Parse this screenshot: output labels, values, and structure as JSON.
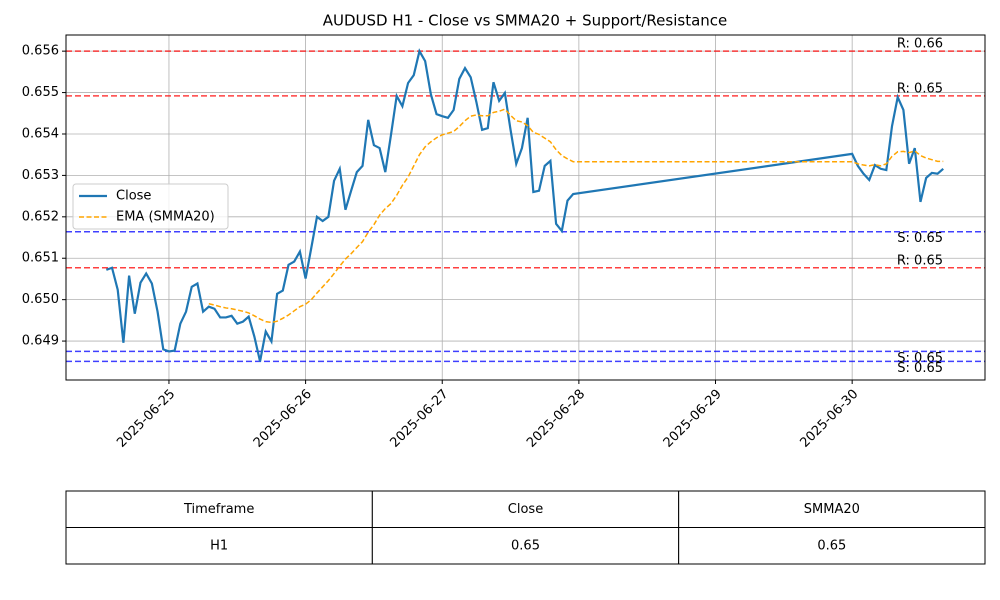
{
  "chart_data": {
    "type": "line",
    "title": "AUDUSD H1 - Close vs SMMA20 + Support/Resistance",
    "x": [
      "2025-06-24T13:00",
      "2025-06-24T14:00",
      "2025-06-24T15:00",
      "2025-06-24T16:00",
      "2025-06-24T17:00",
      "2025-06-24T18:00",
      "2025-06-24T19:00",
      "2025-06-24T20:00",
      "2025-06-24T21:00",
      "2025-06-24T22:00",
      "2025-06-24T23:00",
      "2025-06-25T00:00",
      "2025-06-25T01:00",
      "2025-06-25T02:00",
      "2025-06-25T03:00",
      "2025-06-25T04:00",
      "2025-06-25T05:00",
      "2025-06-25T06:00",
      "2025-06-25T07:00",
      "2025-06-25T08:00",
      "2025-06-25T09:00",
      "2025-06-25T10:00",
      "2025-06-25T11:00",
      "2025-06-25T12:00",
      "2025-06-25T13:00",
      "2025-06-25T14:00",
      "2025-06-25T15:00",
      "2025-06-25T16:00",
      "2025-06-25T17:00",
      "2025-06-25T18:00",
      "2025-06-25T19:00",
      "2025-06-25T20:00",
      "2025-06-25T21:00",
      "2025-06-25T22:00",
      "2025-06-25T23:00",
      "2025-06-26T00:00",
      "2025-06-26T01:00",
      "2025-06-26T02:00",
      "2025-06-26T03:00",
      "2025-06-26T04:00",
      "2025-06-26T05:00",
      "2025-06-26T06:00",
      "2025-06-26T07:00",
      "2025-06-26T08:00",
      "2025-06-26T09:00",
      "2025-06-26T10:00",
      "2025-06-26T11:00",
      "2025-06-26T12:00",
      "2025-06-26T13:00",
      "2025-06-26T14:00",
      "2025-06-26T15:00",
      "2025-06-26T16:00",
      "2025-06-26T17:00",
      "2025-06-26T18:00",
      "2025-06-26T19:00",
      "2025-06-26T20:00",
      "2025-06-26T21:00",
      "2025-06-26T22:00",
      "2025-06-26T23:00",
      "2025-06-27T00:00",
      "2025-06-27T01:00",
      "2025-06-27T02:00",
      "2025-06-27T03:00",
      "2025-06-27T04:00",
      "2025-06-27T05:00",
      "2025-06-27T06:00",
      "2025-06-27T07:00",
      "2025-06-27T08:00",
      "2025-06-27T09:00",
      "2025-06-27T10:00",
      "2025-06-27T11:00",
      "2025-06-27T12:00",
      "2025-06-27T13:00",
      "2025-06-27T14:00",
      "2025-06-27T15:00",
      "2025-06-27T16:00",
      "2025-06-27T17:00",
      "2025-06-27T18:00",
      "2025-06-27T19:00",
      "2025-06-27T20:00",
      "2025-06-27T21:00",
      "2025-06-27T22:00",
      "2025-06-27T23:00",
      "2025-06-30T00:00",
      "2025-06-30T01:00",
      "2025-06-30T02:00",
      "2025-06-30T03:00",
      "2025-06-30T04:00",
      "2025-06-30T05:00",
      "2025-06-30T06:00",
      "2025-06-30T07:00",
      "2025-06-30T08:00",
      "2025-06-30T09:00",
      "2025-06-30T10:00",
      "2025-06-30T11:00",
      "2025-06-30T12:00",
      "2025-06-30T13:00",
      "2025-06-30T14:00",
      "2025-06-30T15:00",
      "2025-06-30T16:00"
    ],
    "series": [
      {
        "name": "Close",
        "color": "#1f77b4",
        "dash": false,
        "values": [
          0.65072,
          0.65077,
          0.65024,
          0.64896,
          0.65058,
          0.64966,
          0.65041,
          0.65063,
          0.65039,
          0.64971,
          0.6488,
          0.64875,
          0.64877,
          0.64942,
          0.64971,
          0.65031,
          0.65039,
          0.64971,
          0.64983,
          0.64978,
          0.64957,
          0.64957,
          0.64961,
          0.64942,
          0.64947,
          0.64959,
          0.64911,
          0.64851,
          0.64923,
          0.64899,
          0.65014,
          0.65022,
          0.65084,
          0.65092,
          0.65116,
          0.65051,
          0.65125,
          0.652,
          0.6519,
          0.652,
          0.65287,
          0.65316,
          0.65217,
          0.65263,
          0.65308,
          0.65323,
          0.65434,
          0.65373,
          0.65366,
          0.65308,
          0.65398,
          0.65492,
          0.65467,
          0.65523,
          0.65542,
          0.656,
          0.65576,
          0.65496,
          0.65448,
          0.65443,
          0.65439,
          0.65458,
          0.65533,
          0.65559,
          0.65537,
          0.65477,
          0.6541,
          0.65414,
          0.65525,
          0.6548,
          0.65499,
          0.6541,
          0.65328,
          0.65366,
          0.65439,
          0.6526,
          0.65263,
          0.65323,
          0.65335,
          0.65183,
          0.65166,
          0.65239,
          0.65255,
          0.65352,
          0.65323,
          0.65304,
          0.65289,
          0.65325,
          0.65316,
          0.65313,
          0.65419,
          0.65489,
          0.65458,
          0.65328,
          0.65366,
          0.65236,
          0.65294,
          0.65306,
          0.65304,
          0.65316
        ]
      },
      {
        "name": "EMA (SMMA20)",
        "color": "#ffa500",
        "dash": true,
        "values": [
          null,
          null,
          null,
          null,
          null,
          null,
          null,
          null,
          null,
          null,
          null,
          null,
          null,
          null,
          null,
          null,
          null,
          null,
          0.6499,
          0.64987,
          0.64983,
          0.6498,
          0.64978,
          0.64975,
          0.64972,
          0.64968,
          0.64961,
          0.64953,
          0.64947,
          0.64945,
          0.64948,
          0.64955,
          0.64963,
          0.64973,
          0.64983,
          0.64989,
          0.65,
          0.65016,
          0.65031,
          0.65046,
          0.65063,
          0.65081,
          0.65098,
          0.65111,
          0.65126,
          0.6514,
          0.65163,
          0.65181,
          0.65204,
          0.6522,
          0.65232,
          0.65252,
          0.65276,
          0.65296,
          0.65323,
          0.6535,
          0.65369,
          0.65381,
          0.65391,
          0.65398,
          0.65402,
          0.65406,
          0.65418,
          0.65432,
          0.65443,
          0.65446,
          0.65444,
          0.65444,
          0.65452,
          0.65455,
          0.6546,
          0.65445,
          0.65432,
          0.65429,
          0.6542,
          0.65404,
          0.65399,
          0.6539,
          0.65381,
          0.65362,
          0.65348,
          0.6534,
          0.65333,
          0.65333,
          0.65328,
          0.65325,
          0.65323,
          0.65326,
          0.65323,
          0.65328,
          0.65346,
          0.65357,
          0.65358,
          0.65355,
          0.65359,
          0.65348,
          0.65342,
          0.65338,
          0.65334,
          0.65334
        ]
      }
    ],
    "levels": [
      {
        "value": 0.656,
        "label": "R: 0.66",
        "color": "red"
      },
      {
        "value": 0.65492,
        "label": "R: 0.65",
        "color": "red"
      },
      {
        "value": 0.65164,
        "label": "S: 0.65",
        "color": "blue"
      },
      {
        "value": 0.65077,
        "label": "R: 0.65",
        "color": "red"
      },
      {
        "value": 0.64875,
        "label": "S: 0.65",
        "color": "blue"
      },
      {
        "value": 0.64851,
        "label": "S: 0.65",
        "color": "blue"
      }
    ],
    "xlim": [
      "2025-06-24T05:55",
      "2025-06-30T23:20"
    ],
    "xticks": [
      "2025-06-25",
      "2025-06-26",
      "2025-06-27",
      "2025-06-28",
      "2025-06-29",
      "2025-06-30"
    ],
    "ylim": [
      0.64806,
      0.65639
    ],
    "yticks": [
      0.649,
      {
        "value": 0.65,
        "label": "0.650"
      },
      0.651,
      0.652,
      0.653,
      0.654,
      0.655,
      0.656
    ],
    "grid": true,
    "legend": "center left"
  },
  "table": {
    "columns": [
      "Timeframe",
      "Close",
      "SMMA20"
    ],
    "rows": [
      [
        "H1",
        "0.65",
        "0.65"
      ]
    ]
  }
}
